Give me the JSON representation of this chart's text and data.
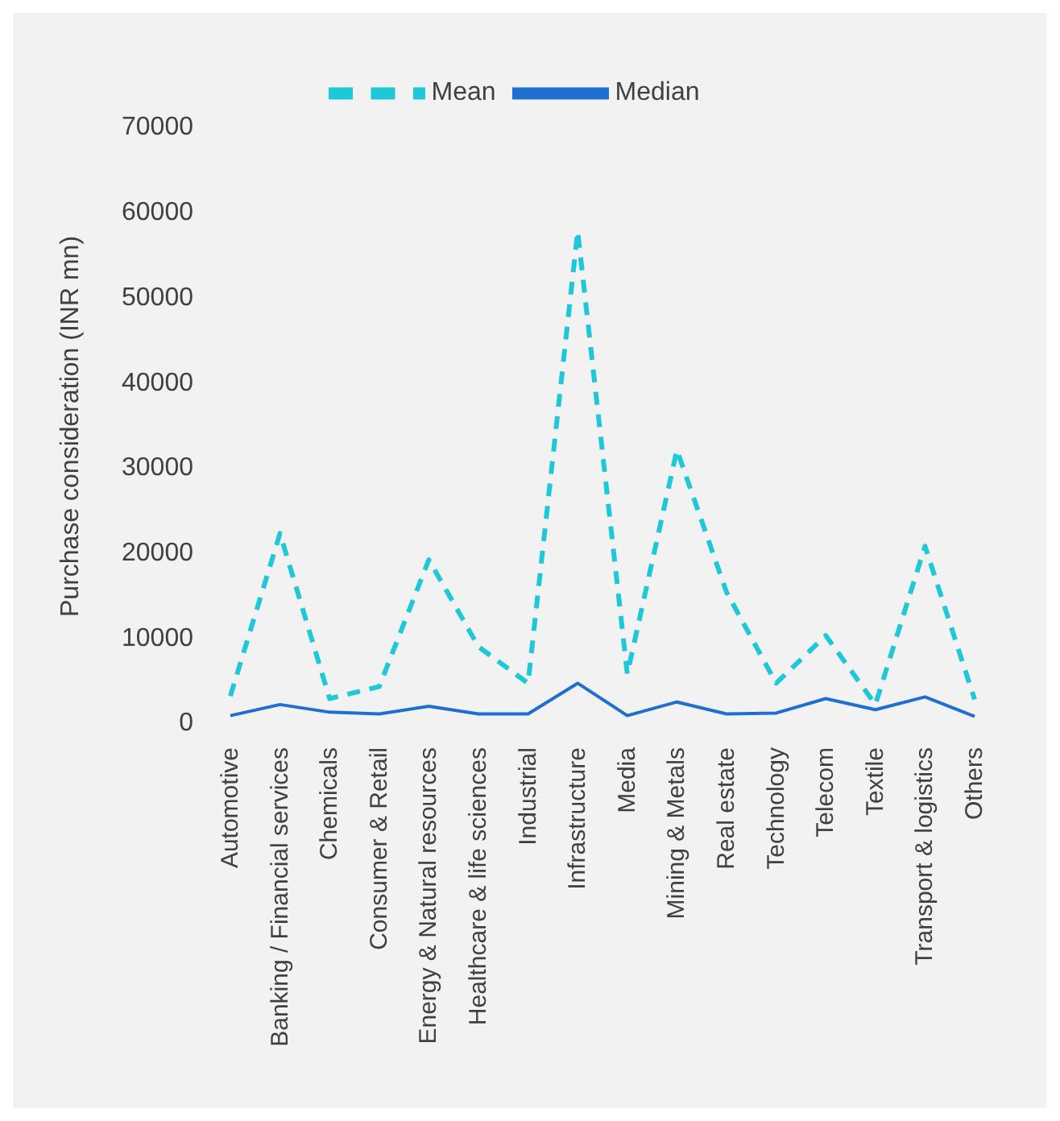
{
  "chart_data": {
    "type": "line",
    "ylabel": "Purchase consideration (INR mn)",
    "categories": [
      "Automotive",
      "Banking / Financial services",
      "Chemicals",
      "Consumer & Retail",
      "Energy & Natural resources",
      "Healthcare & life sciences",
      "Industrial",
      "Infrastructure",
      "Media",
      "Mining & Metals",
      "Real estate",
      "Technology",
      "Telecom",
      "Textile",
      "Transport & logistics",
      "Others"
    ],
    "series": [
      {
        "name": "Median",
        "color": "#1f6fd0",
        "line_style": "solid",
        "values": [
          700,
          2000,
          1100,
          900,
          1800,
          900,
          900,
          4500,
          700,
          2300,
          900,
          1000,
          2700,
          1400,
          2900,
          600
        ]
      },
      {
        "name": "Mean",
        "color": "#1ec8d8",
        "line_style": "dashed",
        "values": [
          3000,
          22100,
          2700,
          4100,
          19000,
          8800,
          4500,
          57600,
          5600,
          31900,
          15200,
          4500,
          10100,
          2000,
          20600,
          2600
        ]
      }
    ],
    "ylim": [
      0,
      70000
    ],
    "yticks": [
      0,
      10000,
      20000,
      30000,
      40000,
      50000,
      60000,
      70000
    ],
    "grid": false,
    "legend": "top",
    "marker": "none"
  }
}
